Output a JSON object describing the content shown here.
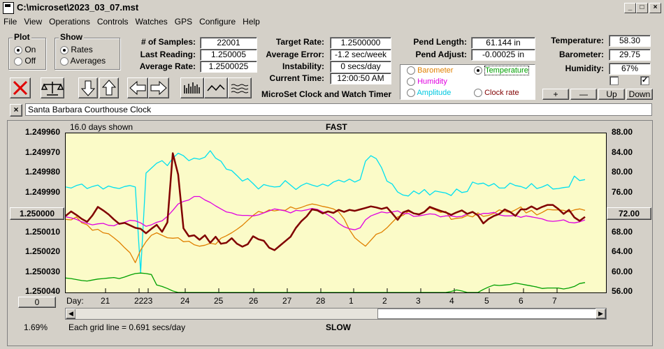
{
  "window": {
    "title": "C:\\microset\\2023_03_07.mst"
  },
  "menu": [
    "File",
    "View",
    "Operations",
    "Controls",
    "Watches",
    "GPS",
    "Configure",
    "Help"
  ],
  "plot_group": {
    "title": "Plot",
    "options": [
      "On",
      "Off"
    ],
    "selected": 0
  },
  "show_group": {
    "title": "Show",
    "options": [
      "Rates",
      "Averages"
    ],
    "selected": 0
  },
  "stats_left": [
    {
      "label": "# of Samples:",
      "value": "22001"
    },
    {
      "label": "Last Reading:",
      "value": "1.250005"
    },
    {
      "label": "Average Rate:",
      "value": "1.2500025"
    }
  ],
  "stats_mid": [
    {
      "label": "Target Rate:",
      "value": "1.2500000"
    },
    {
      "label": "Average Error:",
      "value": "-1.2 sec/week"
    },
    {
      "label": "Instability:",
      "value": "0 secs/day"
    },
    {
      "label": "Current Time:",
      "value": "12:00:50 AM"
    }
  ],
  "app_caption": "MicroSet Clock and Watch Timer",
  "pend": [
    {
      "label": "Pend Length:",
      "value": "61.144 in"
    },
    {
      "label": "Pend Adjust:",
      "value": "-0.00025 in"
    }
  ],
  "env": [
    {
      "label": "Temperature:",
      "value": "58.30"
    },
    {
      "label": "Barometer:",
      "value": "29.75"
    },
    {
      "label": "Humidity:",
      "value": "67%"
    }
  ],
  "aux_series": {
    "options": [
      {
        "label": "Barometer",
        "color": "#e08000",
        "selected": false
      },
      {
        "label": "Temperature",
        "color": "#00a000",
        "selected": true
      },
      {
        "label": "Humidity",
        "color": "#e000e0",
        "selected": false
      },
      {
        "label": "Clock rate",
        "color": "#800000",
        "selected": false
      },
      {
        "label": "Amplitude",
        "color": "#00c8e0",
        "selected": false
      }
    ]
  },
  "checkboxes": [
    false,
    true
  ],
  "scale_buttons": [
    "+",
    "—",
    "Up",
    "Down"
  ],
  "toolbar_icons": [
    "clear-icon",
    "balance-icon",
    "arrow-down-icon",
    "arrow-up-icon",
    "arrow-left-icon",
    "arrow-right-icon",
    "bars-icon",
    "wave-icon",
    "lines-icon"
  ],
  "clock_name": "Santa Barbara Courthouse Clock",
  "chart_labels": {
    "days_shown": "16.0 days shown",
    "top": "FAST",
    "bottom": "SLOW",
    "grid_note": "Each grid line = 0.691 secs/day",
    "day_prefix": "Day:",
    "left_button": "1.250000",
    "right_button": "72.00",
    "bottom_button": "0",
    "percent": "1.69%"
  },
  "chart_data": {
    "type": "line",
    "left_ticks": [
      "1.249960",
      "1.249970",
      "1.249980",
      "1.249990",
      "1.250000",
      "1.250010",
      "1.250020",
      "1.250030",
      "1.250040"
    ],
    "right_ticks": [
      "88.00",
      "84.00",
      "80.00",
      "76.00",
      "72.00",
      "68.00",
      "64.00",
      "60.00",
      "56.00"
    ],
    "x_ticks": [
      "21",
      "22",
      "23",
      "24",
      "25",
      "26",
      "27",
      "28",
      "1",
      "2",
      "3",
      "4",
      "5",
      "6",
      "7"
    ],
    "series": [
      {
        "color": "#00e0f0",
        "values": [
          77.2,
          77.0,
          77.5,
          77.8,
          76.9,
          77.3,
          77.6,
          76.8,
          77.4,
          77.1,
          76.9,
          77.3,
          77.5,
          77.2,
          60.0,
          80.0,
          81.0,
          82.0,
          82.5,
          81.5,
          83.0,
          84.0,
          83.5,
          82.5,
          83.0,
          82.8,
          83.2,
          84.5,
          83.0,
          82.4,
          80.8,
          80.5,
          79.5,
          78.4,
          78.9,
          77.9,
          76.8,
          77.7,
          77.4,
          77.2,
          77.3,
          78.5,
          77.6,
          76.7,
          77.5,
          78.0,
          77.6,
          77.3,
          77.8,
          77.4,
          78.2,
          78.6,
          78.2,
          78.8,
          78.2,
          78.7,
          82.4,
          83.5,
          82.9,
          81.1,
          78.4,
          77.8,
          76.2,
          75.6,
          75.4,
          76.4,
          75.8,
          76.7,
          75.6,
          76.4,
          76.2,
          76.0,
          75.5,
          76.8,
          76.1,
          76.3,
          78.2,
          77.8,
          78.0,
          77.4,
          77.9,
          77.0,
          77.0,
          78.0,
          77.5,
          77.3,
          76.9,
          77.9,
          76.9,
          77.2,
          77.7,
          76.8,
          76.9,
          77.1,
          77.2,
          79.4,
          78.5,
          78.7
        ]
      },
      {
        "color": "#e08000",
        "values": [
          70.7,
          70.6,
          71.2,
          70.0,
          69.6,
          68.5,
          68.7,
          68.0,
          67.8,
          67.0,
          66.1,
          65.0,
          64.0,
          62.0,
          64.5,
          66.2,
          67.5,
          68.0,
          67.5,
          67.0,
          66.9,
          67.0,
          66.2,
          66.3,
          65.6,
          65.3,
          65.5,
          65.9,
          65.7,
          66.9,
          67.4,
          68.0,
          68.7,
          69.5,
          70.5,
          71.5,
          72.3,
          72.0,
          72.6,
          72.4,
          72.6,
          72.5,
          73.2,
          72.8,
          73.1,
          73.5,
          73.8,
          73.6,
          73.3,
          73.1,
          72.8,
          72.2,
          70.8,
          68.6,
          67.0,
          66.1,
          65.3,
          66.5,
          67.7,
          68.1,
          69.0,
          70.1,
          71.2,
          71.5,
          72.3,
          71.9,
          71.8,
          72.1,
          73.0,
          72.6,
          72.1,
          72.3,
          70.7,
          70.9,
          71.0,
          71.5,
          71.2,
          72.0,
          71.3,
          71.5,
          71.9,
          72.6,
          72.3,
          72.1,
          72.6,
          73.2,
          72.0,
          72.5,
          71.6,
          72.1,
          72.7,
          72.6,
          72.6,
          72.5,
          72.2,
          72.6,
          72.8,
          72.5
        ]
      },
      {
        "color": "#e000e0",
        "values": [
          71.2,
          71.0,
          70.7,
          70.2,
          69.9,
          69.6,
          69.8,
          69.9,
          69.5,
          69.4,
          69.9,
          70.1,
          70.5,
          70.4,
          70.0,
          69.3,
          69.6,
          70.1,
          70.4,
          71.3,
          72.5,
          73.8,
          74.3,
          74.6,
          75.3,
          75.3,
          74.6,
          74.1,
          73.4,
          72.8,
          72.2,
          72.0,
          71.6,
          71.5,
          71.5,
          71.4,
          71.6,
          72.0,
          72.4,
          72.8,
          72.6,
          72.4,
          72.0,
          72.5,
          72.4,
          72.6,
          72.9,
          72.7,
          72.2,
          71.6,
          70.9,
          69.9,
          69.2,
          68.8,
          68.6,
          69.0,
          70.6,
          71.4,
          71.8,
          72.2,
          72.0,
          72.2,
          72.4,
          71.8,
          71.9,
          71.3,
          71.4,
          71.6,
          71.8,
          71.7,
          71.2,
          71.4,
          71.4,
          71.2,
          71.3,
          71.8,
          72.1,
          71.6,
          71.9,
          71.9,
          72.1,
          71.6,
          71.4,
          71.4,
          71.5,
          71.1,
          71.4,
          71.2,
          71.0,
          70.8,
          70.4,
          70.3,
          70.4,
          70.6,
          70.1,
          70.0,
          70.2,
          70.6
        ]
      },
      {
        "color": "#800000",
        "values": [
          71.4,
          72.3,
          71.6,
          70.8,
          70.2,
          71.5,
          73.2,
          72.5,
          71.7,
          70.7,
          69.8,
          70.0,
          69.5,
          69.0,
          68.8,
          67.9,
          68.8,
          69.6,
          68.2,
          70.1,
          84.0,
          79.7,
          68.9,
          67.3,
          67.5,
          66.6,
          67.5,
          66.0,
          67.2,
          65.8,
          66.0,
          66.9,
          65.8,
          65.2,
          65.7,
          67.3,
          66.7,
          66.4,
          65.0,
          64.5,
          65.4,
          66.3,
          67.2,
          69.0,
          70.3,
          71.3,
          72.7,
          72.5,
          71.9,
          72.3,
          72.0,
          72.6,
          72.2,
          72.6,
          72.4,
          72.7,
          73.0,
          73.3,
          73.1,
          72.8,
          73.1,
          71.9,
          70.6,
          72.1,
          72.5,
          71.9,
          71.7,
          72.2,
          73.2,
          72.8,
          72.4,
          72.1,
          71.6,
          72.1,
          72.5,
          71.8,
          72.2,
          71.5,
          69.9,
          70.8,
          71.4,
          71.8,
          72.7,
          72.2,
          71.4,
          72.7,
          72.7,
          73.3,
          72.7,
          73.2,
          73.6,
          73.6,
          72.8,
          71.8,
          72.6,
          71.1,
          70.4,
          71.2
        ]
      },
      {
        "color": "#00a000",
        "values": [
          58.9,
          58.8,
          58.6,
          58.4,
          58.3,
          58.5,
          58.7,
          58.8,
          58.9,
          59.0,
          58.8,
          59.1,
          59.5,
          59.8,
          59.9,
          59.8,
          59.6,
          57.5,
          57.2,
          56.8,
          56.3,
          56.0,
          56.0,
          56.0,
          56.0,
          56.0,
          56.0,
          56.0,
          56.0,
          56.0,
          56.0,
          56.0,
          56.0,
          56.0,
          56.0,
          56.0,
          56.0,
          56.0,
          56.0,
          56.0,
          56.0,
          56.0,
          56.0,
          56.0,
          56.0,
          56.0,
          56.0,
          56.0,
          56.0,
          56.0,
          56.0,
          56.0,
          56.0,
          56.0,
          56.0,
          56.0,
          56.0,
          56.0,
          56.0,
          56.0,
          56.0,
          56.0,
          56.0,
          56.0,
          56.0,
          56.0,
          56.0,
          56.0,
          56.0,
          56.0,
          56.0,
          56.0,
          56.2,
          56.5,
          56.3,
          56.0,
          56.0,
          56.0,
          56.6,
          57.1,
          57.5,
          57.4,
          57.5,
          57.6,
          57.9,
          57.7,
          57.5,
          57.3,
          57.1,
          56.8,
          56.9,
          56.9,
          56.9,
          56.7,
          56.9,
          57.2,
          57.8,
          58.0
        ]
      }
    ]
  }
}
